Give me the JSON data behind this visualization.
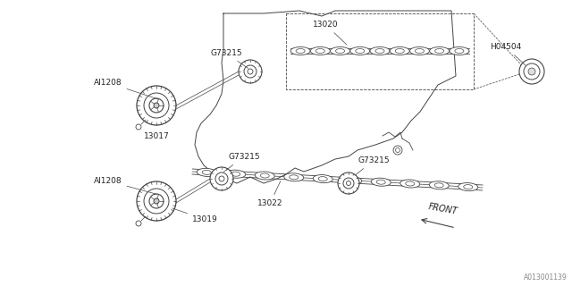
{
  "bg_color": "#ffffff",
  "line_color": "#444444",
  "text_color": "#222222",
  "figsize": [
    6.4,
    3.2
  ],
  "dpi": 100,
  "diagram_id": "A013001139",
  "parts": {
    "upper_pulley_label": "AI1208",
    "upper_pulley_part": "13017",
    "upper_sprocket_label": "G73215",
    "upper_camshaft_label": "13020",
    "plug_label": "H04504",
    "lower_pulley_label": "AI1208",
    "lower_pulley_part": "13019",
    "lower_sprocket1_label": "G73215",
    "lower_sprocket2_label": "G73215",
    "lower_camshaft_label": "13022",
    "front_label": "FRONT"
  }
}
